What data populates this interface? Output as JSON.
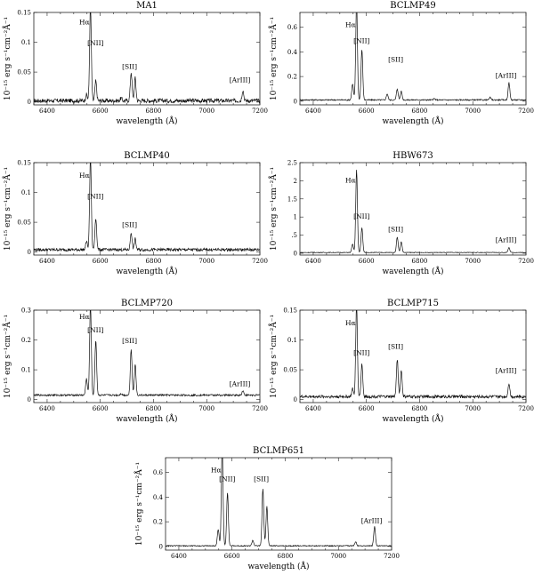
{
  "figure": {
    "xlabel": "wavelength (Å)",
    "ylabel": "10⁻¹⁵ erg s⁻¹cm⁻²Å⁻¹"
  },
  "chart_data": [
    {
      "type": "line",
      "title": "MA1",
      "xlabel": "wavelength (Å)",
      "ylabel": "10⁻¹⁵ erg s⁻¹cm⁻²Å⁻¹",
      "xlim": [
        6350,
        7200
      ],
      "ylim": [
        -0.005,
        0.15
      ],
      "xticks": [
        6400,
        6600,
        6800,
        7000,
        7200
      ],
      "yticks": [
        0,
        0.05,
        0.1,
        0.15
      ],
      "ytick_labels": [
        "0",
        "0.05",
        "0.1",
        "0.15"
      ],
      "continuum": 0.002,
      "noise": 0.0035,
      "peaks": [
        {
          "x": 6548,
          "y": 0.012
        },
        {
          "x": 6563,
          "y": 0.16
        },
        {
          "x": 6583,
          "y": 0.035
        },
        {
          "x": 6678,
          "y": 0.006
        },
        {
          "x": 6716,
          "y": 0.05
        },
        {
          "x": 6731,
          "y": 0.04
        },
        {
          "x": 7136,
          "y": 0.02
        }
      ],
      "labels": [
        {
          "text": "Hα",
          "x": 6540,
          "y": 0.13
        },
        {
          "text": "[NII]",
          "x": 6582,
          "y": 0.095
        },
        {
          "text": "[SII]",
          "x": 6710,
          "y": 0.055
        },
        {
          "text": "[ArIII]",
          "x": 7125,
          "y": 0.033
        }
      ]
    },
    {
      "type": "line",
      "title": "BCLMP49",
      "xlabel": "wavelength (Å)",
      "ylabel": "10⁻¹⁵ erg s⁻¹cm⁻²Å⁻¹",
      "xlim": [
        6350,
        7200
      ],
      "ylim": [
        -0.03,
        0.72
      ],
      "xticks": [
        6400,
        6600,
        6800,
        7000,
        7200
      ],
      "yticks": [
        0,
        0.2,
        0.4,
        0.6
      ],
      "ytick_labels": [
        "0",
        "0.2",
        "0.4",
        "0.6"
      ],
      "continuum": 0.01,
      "noise": 0.005,
      "peaks": [
        {
          "x": 6548,
          "y": 0.14
        },
        {
          "x": 6563,
          "y": 0.8
        },
        {
          "x": 6583,
          "y": 0.42
        },
        {
          "x": 6678,
          "y": 0.06
        },
        {
          "x": 6716,
          "y": 0.1
        },
        {
          "x": 6731,
          "y": 0.08
        },
        {
          "x": 6855,
          "y": 0.02
        },
        {
          "x": 7065,
          "y": 0.03
        },
        {
          "x": 7136,
          "y": 0.15
        }
      ],
      "labels": [
        {
          "text": "Hα",
          "x": 6540,
          "y": 0.6
        },
        {
          "text": "[NII]",
          "x": 6582,
          "y": 0.47
        },
        {
          "text": "[SII]",
          "x": 6710,
          "y": 0.32
        },
        {
          "text": "[ArIII]",
          "x": 7125,
          "y": 0.19
        }
      ]
    },
    {
      "type": "line",
      "title": "BCLMP40",
      "xlabel": "wavelength (Å)",
      "ylabel": "10⁻¹⁵ erg s⁻¹cm⁻²Å⁻¹",
      "xlim": [
        6350,
        7200
      ],
      "ylim": [
        -0.005,
        0.15
      ],
      "xticks": [
        6400,
        6600,
        6800,
        7000,
        7200
      ],
      "yticks": [
        0,
        0.05,
        0.1,
        0.15
      ],
      "ytick_labels": [
        "0",
        "0.05",
        "0.1",
        "0.15"
      ],
      "continuum": 0.004,
      "noise": 0.0025,
      "peaks": [
        {
          "x": 6548,
          "y": 0.018
        },
        {
          "x": 6563,
          "y": 0.16
        },
        {
          "x": 6583,
          "y": 0.058
        },
        {
          "x": 6716,
          "y": 0.033
        },
        {
          "x": 6731,
          "y": 0.022
        }
      ],
      "labels": [
        {
          "text": "Hα",
          "x": 6540,
          "y": 0.125
        },
        {
          "text": "[NII]",
          "x": 6582,
          "y": 0.09
        },
        {
          "text": "[SII]",
          "x": 6710,
          "y": 0.042
        }
      ]
    },
    {
      "type": "line",
      "title": "HBW673",
      "xlabel": "wavelength (Å)",
      "ylabel": "10⁻¹⁵ erg s⁻¹cm⁻²Å⁻¹",
      "xlim": [
        6350,
        7200
      ],
      "ylim": [
        -0.05,
        2.5
      ],
      "xticks": [
        6400,
        6600,
        6800,
        7000,
        7200
      ],
      "yticks": [
        0,
        0.5,
        1,
        1.5,
        2,
        2.5
      ],
      "ytick_labels": [
        "0",
        ".5",
        "1",
        "1.5",
        "2",
        "2.5"
      ],
      "continuum": 0.02,
      "noise": 0.008,
      "peaks": [
        {
          "x": 6548,
          "y": 0.25
        },
        {
          "x": 6563,
          "y": 2.3
        },
        {
          "x": 6583,
          "y": 0.7
        },
        {
          "x": 6716,
          "y": 0.45
        },
        {
          "x": 6731,
          "y": 0.32
        },
        {
          "x": 7136,
          "y": 0.16
        }
      ],
      "labels": [
        {
          "text": "Hα",
          "x": 6540,
          "y": 1.95
        },
        {
          "text": "[NII]",
          "x": 6582,
          "y": 0.95
        },
        {
          "text": "[SII]",
          "x": 6710,
          "y": 0.6
        },
        {
          "text": "[ArIII]",
          "x": 7125,
          "y": 0.3
        }
      ]
    },
    {
      "type": "line",
      "title": "BCLMP720",
      "xlabel": "wavelength (Å)",
      "ylabel": "10⁻¹⁵ erg s⁻¹cm⁻²Å⁻¹",
      "xlim": [
        6350,
        7200
      ],
      "ylim": [
        -0.01,
        0.3
      ],
      "xticks": [
        6400,
        6600,
        6800,
        7000,
        7200
      ],
      "yticks": [
        0,
        0.1,
        0.2,
        0.3
      ],
      "ytick_labels": [
        "0",
        "0.1",
        "0.2",
        "0.3"
      ],
      "continuum": 0.015,
      "noise": 0.003,
      "peaks": [
        {
          "x": 6548,
          "y": 0.07
        },
        {
          "x": 6563,
          "y": 0.32
        },
        {
          "x": 6583,
          "y": 0.2
        },
        {
          "x": 6678,
          "y": 0.02
        },
        {
          "x": 6716,
          "y": 0.17
        },
        {
          "x": 6731,
          "y": 0.12
        },
        {
          "x": 7136,
          "y": 0.03
        }
      ],
      "labels": [
        {
          "text": "Hα",
          "x": 6540,
          "y": 0.27
        },
        {
          "text": "[NII]",
          "x": 6582,
          "y": 0.225
        },
        {
          "text": "[SII]",
          "x": 6710,
          "y": 0.19
        },
        {
          "text": "[ArIII]",
          "x": 7125,
          "y": 0.045
        }
      ]
    },
    {
      "type": "line",
      "title": "BCLMP715",
      "xlabel": "wavelength (Å)",
      "ylabel": "10⁻¹⁵ erg s⁻¹cm⁻²Å⁻¹",
      "xlim": [
        6350,
        7200
      ],
      "ylim": [
        -0.005,
        0.15
      ],
      "xticks": [
        6400,
        6600,
        6800,
        7000,
        7200
      ],
      "yticks": [
        0,
        0.05,
        0.1,
        0.15
      ],
      "ytick_labels": [
        "0",
        "0.05",
        "0.1",
        "0.15"
      ],
      "continuum": 0.005,
      "noise": 0.0025,
      "peaks": [
        {
          "x": 6548,
          "y": 0.018
        },
        {
          "x": 6563,
          "y": 0.16
        },
        {
          "x": 6583,
          "y": 0.06
        },
        {
          "x": 6716,
          "y": 0.068
        },
        {
          "x": 6731,
          "y": 0.05
        },
        {
          "x": 7136,
          "y": 0.028
        }
      ],
      "labels": [
        {
          "text": "Hα",
          "x": 6540,
          "y": 0.125
        },
        {
          "text": "[NII]",
          "x": 6582,
          "y": 0.075
        },
        {
          "text": "[SII]",
          "x": 6710,
          "y": 0.085
        },
        {
          "text": "[ArIII]",
          "x": 7125,
          "y": 0.045
        }
      ]
    },
    {
      "type": "line",
      "title": "BCLMP651",
      "xlabel": "wavelength (Å)",
      "ylabel": "10⁻¹⁵ erg s⁻¹cm⁻²Å⁻¹",
      "xlim": [
        6350,
        7200
      ],
      "ylim": [
        -0.03,
        0.72
      ],
      "xticks": [
        6400,
        6600,
        6800,
        7000,
        7200
      ],
      "yticks": [
        0,
        0.2,
        0.4,
        0.6
      ],
      "ytick_labels": [
        "0",
        "0.2",
        "0.4",
        "0.6"
      ],
      "continuum": 0.005,
      "noise": 0.004,
      "peaks": [
        {
          "x": 6548,
          "y": 0.14
        },
        {
          "x": 6563,
          "y": 0.8
        },
        {
          "x": 6583,
          "y": 0.44
        },
        {
          "x": 6678,
          "y": 0.05
        },
        {
          "x": 6716,
          "y": 0.47
        },
        {
          "x": 6731,
          "y": 0.33
        },
        {
          "x": 7065,
          "y": 0.04
        },
        {
          "x": 7136,
          "y": 0.16
        }
      ],
      "labels": [
        {
          "text": "Hα",
          "x": 6540,
          "y": 0.6
        },
        {
          "text": "[NII]",
          "x": 6582,
          "y": 0.53
        },
        {
          "text": "[SII]",
          "x": 6710,
          "y": 0.53
        },
        {
          "text": "[ArIII]",
          "x": 7125,
          "y": 0.19
        }
      ]
    }
  ]
}
